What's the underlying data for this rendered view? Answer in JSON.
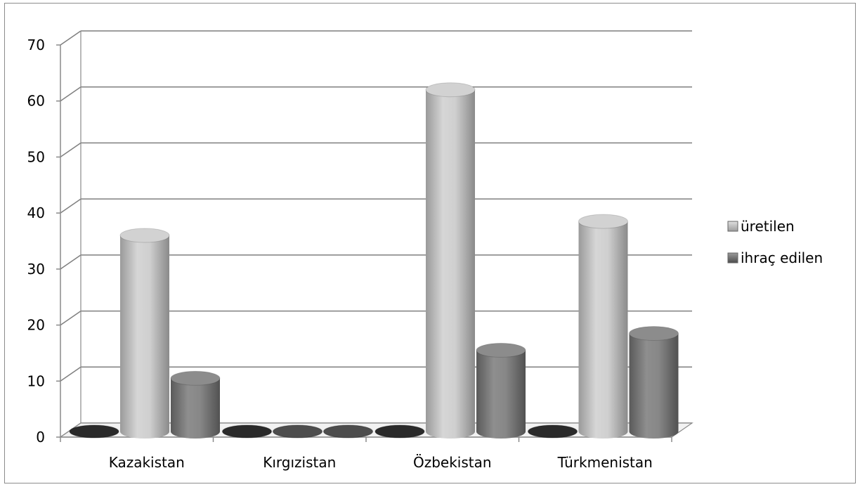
{
  "chart_data": {
    "type": "bar",
    "style": "3d-cylinder",
    "categories": [
      "Kazakistan",
      "Kırgızistan",
      "Özbekistan",
      "Türkmenistan"
    ],
    "series": [
      {
        "name": "",
        "values": [
          0,
          0,
          0,
          0
        ],
        "color": "#2f2f2f"
      },
      {
        "name": "üretilen",
        "values": [
          35,
          0,
          61,
          37.5
        ],
        "color": "#bdbdbd"
      },
      {
        "name": "ihraç edilen",
        "values": [
          9.5,
          0,
          14.5,
          17.5
        ],
        "color": "#7a7a7a"
      }
    ],
    "yticks": [
      "0",
      "10",
      "20",
      "30",
      "40",
      "50",
      "60",
      "70"
    ],
    "ylim": [
      0,
      70
    ],
    "grid": true,
    "legend_position": "right"
  }
}
